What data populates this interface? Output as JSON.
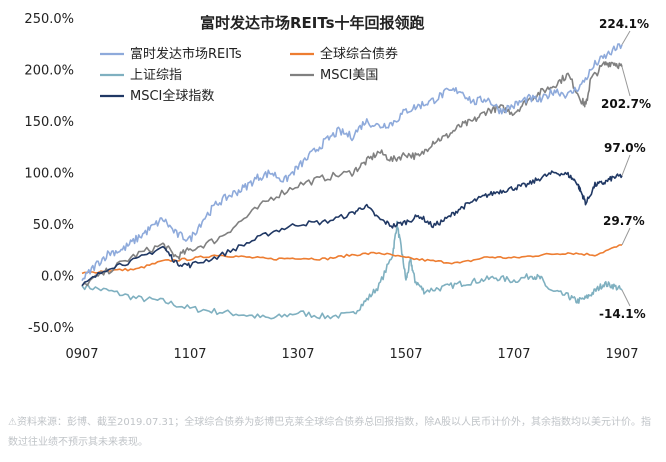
{
  "chart_data": {
    "type": "line",
    "title": "富时发达市场REITs十年回报领跑",
    "xlabel": "",
    "ylabel": "",
    "x_ticks": [
      "0907",
      "1107",
      "1307",
      "1507",
      "1707",
      "1907"
    ],
    "x_range": [
      0,
      120
    ],
    "ylim": [
      -50,
      250
    ],
    "y_ticks": [
      "-50.0%",
      "0.0%",
      "50.0%",
      "100.0%",
      "150.0%",
      "200.0%",
      "250.0%"
    ],
    "y_tick_values": [
      -50,
      0,
      50,
      100,
      150,
      200,
      250
    ],
    "grid": false,
    "legend_position": "top-left",
    "series": [
      {
        "name": "富时发达市场REITs",
        "color": "#8eaadb",
        "end_label": "224.1%",
        "points": [
          [
            0,
            -5
          ],
          [
            3,
            10
          ],
          [
            6,
            22
          ],
          [
            9,
            25
          ],
          [
            12,
            35
          ],
          [
            15,
            45
          ],
          [
            18,
            55
          ],
          [
            21,
            40
          ],
          [
            24,
            35
          ],
          [
            27,
            55
          ],
          [
            30,
            70
          ],
          [
            33,
            78
          ],
          [
            36,
            85
          ],
          [
            39,
            95
          ],
          [
            42,
            100
          ],
          [
            45,
            92
          ],
          [
            48,
            105
          ],
          [
            51,
            118
          ],
          [
            54,
            130
          ],
          [
            57,
            140
          ],
          [
            60,
            135
          ],
          [
            63,
            150
          ],
          [
            66,
            145
          ],
          [
            69,
            148
          ],
          [
            72,
            160
          ],
          [
            75,
            165
          ],
          [
            78,
            170
          ],
          [
            81,
            178
          ],
          [
            84,
            180
          ],
          [
            87,
            168
          ],
          [
            90,
            172
          ],
          [
            93,
            160
          ],
          [
            96,
            165
          ],
          [
            99,
            172
          ],
          [
            102,
            170
          ],
          [
            105,
            180
          ],
          [
            108,
            175
          ],
          [
            111,
            185
          ],
          [
            114,
            205
          ],
          [
            117,
            215
          ],
          [
            120,
            224.1
          ]
        ]
      },
      {
        "name": "全球综合债券",
        "color": "#ed7d31",
        "end_label": "29.7%",
        "points": [
          [
            0,
            2
          ],
          [
            6,
            5
          ],
          [
            12,
            6
          ],
          [
            18,
            14
          ],
          [
            24,
            16
          ],
          [
            30,
            20
          ],
          [
            36,
            18
          ],
          [
            42,
            16
          ],
          [
            48,
            17
          ],
          [
            54,
            16
          ],
          [
            60,
            20
          ],
          [
            66,
            22
          ],
          [
            72,
            17
          ],
          [
            78,
            14
          ],
          [
            84,
            12
          ],
          [
            90,
            18
          ],
          [
            96,
            17
          ],
          [
            102,
            20
          ],
          [
            108,
            22
          ],
          [
            114,
            20
          ],
          [
            120,
            29.7
          ]
        ]
      },
      {
        "name": "上证综指",
        "color": "#7fb0c0",
        "end_label": "-14.1%",
        "points": [
          [
            0,
            -10
          ],
          [
            6,
            -15
          ],
          [
            12,
            -22
          ],
          [
            18,
            -25
          ],
          [
            24,
            -32
          ],
          [
            30,
            -35
          ],
          [
            36,
            -38
          ],
          [
            42,
            -42
          ],
          [
            48,
            -36
          ],
          [
            54,
            -40
          ],
          [
            60,
            -38
          ],
          [
            63,
            -25
          ],
          [
            66,
            -10
          ],
          [
            69,
            20
          ],
          [
            70,
            50
          ],
          [
            71,
            25
          ],
          [
            72,
            -5
          ],
          [
            73,
            15
          ],
          [
            74,
            -5
          ],
          [
            76,
            -15
          ],
          [
            80,
            -12
          ],
          [
            84,
            -8
          ],
          [
            88,
            -5
          ],
          [
            92,
            -2
          ],
          [
            96,
            -5
          ],
          [
            100,
            0
          ],
          [
            102,
            -3
          ],
          [
            104,
            -15
          ],
          [
            108,
            -20
          ],
          [
            110,
            -25
          ],
          [
            112,
            -22
          ],
          [
            114,
            -15
          ],
          [
            116,
            -8
          ],
          [
            118,
            -10
          ],
          [
            120,
            -14.1
          ]
        ]
      },
      {
        "name": "MSCI美国",
        "color": "#808080",
        "end_label": "202.7%",
        "points": [
          [
            0,
            -10
          ],
          [
            6,
            5
          ],
          [
            12,
            20
          ],
          [
            18,
            30
          ],
          [
            21,
            18
          ],
          [
            24,
            25
          ],
          [
            30,
            35
          ],
          [
            36,
            55
          ],
          [
            42,
            75
          ],
          [
            48,
            88
          ],
          [
            54,
            95
          ],
          [
            60,
            100
          ],
          [
            63,
            110
          ],
          [
            66,
            120
          ],
          [
            69,
            112
          ],
          [
            72,
            118
          ],
          [
            75,
            115
          ],
          [
            78,
            130
          ],
          [
            81,
            135
          ],
          [
            84,
            145
          ],
          [
            87,
            150
          ],
          [
            90,
            160
          ],
          [
            93,
            163
          ],
          [
            96,
            158
          ],
          [
            99,
            170
          ],
          [
            102,
            178
          ],
          [
            105,
            185
          ],
          [
            108,
            195
          ],
          [
            111,
            170
          ],
          [
            112,
            165
          ],
          [
            113,
            190
          ],
          [
            116,
            205
          ],
          [
            118,
            207
          ],
          [
            120,
            202.7
          ]
        ]
      },
      {
        "name": "MSCI全球指数",
        "color": "#203864",
        "end_label": "97.0%",
        "points": [
          [
            0,
            -10
          ],
          [
            6,
            8
          ],
          [
            12,
            15
          ],
          [
            18,
            28
          ],
          [
            21,
            12
          ],
          [
            24,
            10
          ],
          [
            30,
            18
          ],
          [
            36,
            30
          ],
          [
            42,
            42
          ],
          [
            48,
            50
          ],
          [
            54,
            52
          ],
          [
            60,
            60
          ],
          [
            63,
            68
          ],
          [
            66,
            55
          ],
          [
            69,
            48
          ],
          [
            72,
            52
          ],
          [
            75,
            58
          ],
          [
            78,
            48
          ],
          [
            81,
            55
          ],
          [
            84,
            65
          ],
          [
            87,
            72
          ],
          [
            90,
            78
          ],
          [
            93,
            82
          ],
          [
            96,
            85
          ],
          [
            99,
            88
          ],
          [
            102,
            95
          ],
          [
            105,
            100
          ],
          [
            108,
            98
          ],
          [
            110,
            90
          ],
          [
            111,
            80
          ],
          [
            112,
            70
          ],
          [
            114,
            88
          ],
          [
            116,
            90
          ],
          [
            118,
            95
          ],
          [
            120,
            97.0
          ]
        ]
      }
    ]
  },
  "footnote": "⚠资料来源：彭博、截至2019.07.31；全球综合债券为彭博巴克莱全球综合债券总回报指数，除A股以人民币计价外，其余指数均以美元计价。指数过往业绩不预示其未来表现。"
}
